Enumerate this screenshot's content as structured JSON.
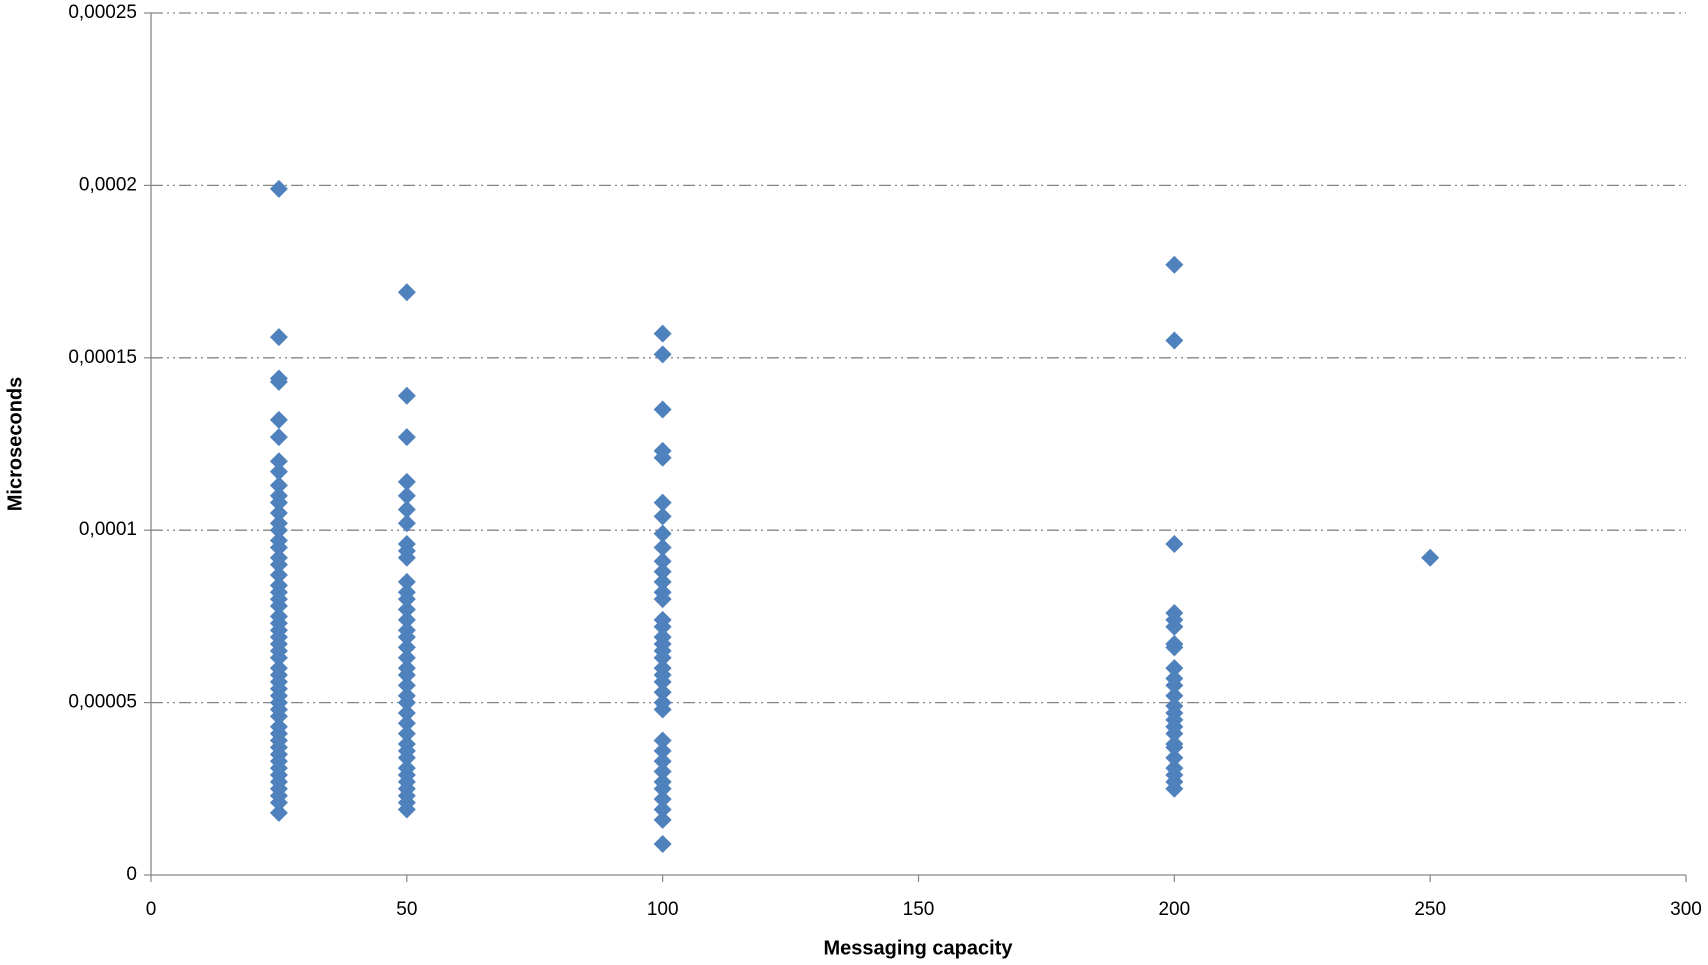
{
  "chart_data": {
    "type": "scatter",
    "x_label": "Messaging capacity",
    "y_label": "Microseconds",
    "color": "#4f81bd",
    "grid": true,
    "xlim": [
      0,
      300
    ],
    "xticks": [
      0,
      50,
      100,
      150,
      200,
      250,
      300
    ],
    "ylim": [
      0,
      0.00025
    ],
    "yticks": [
      0,
      {
        "value": 5e-05,
        "label": "0,00005"
      },
      {
        "value": 0.0001,
        "label": "0,0001"
      },
      {
        "value": 0.00015,
        "label": "0,00015"
      },
      {
        "value": 0.0002,
        "label": "0,0002"
      },
      {
        "value": 0.00025,
        "label": "0,00025"
      }
    ],
    "x": [
      25,
      25,
      25,
      25,
      25,
      25,
      25,
      25,
      25,
      25,
      25,
      25,
      25,
      25,
      25,
      25,
      25,
      25,
      25,
      25,
      25,
      25,
      25,
      25,
      25,
      25,
      25,
      25,
      25,
      25,
      25,
      25,
      25,
      25,
      25,
      25,
      25,
      25,
      25,
      25,
      25,
      25,
      25,
      25,
      25,
      25,
      25,
      25,
      25,
      25,
      25,
      50,
      50,
      50,
      50,
      50,
      50,
      50,
      50,
      50,
      50,
      50,
      50,
      50,
      50,
      50,
      50,
      50,
      50,
      50,
      50,
      50,
      50,
      50,
      50,
      50,
      50,
      50,
      50,
      50,
      50,
      50,
      50,
      50,
      50,
      50,
      50,
      50,
      100,
      100,
      100,
      100,
      100,
      100,
      100,
      100,
      100,
      100,
      100,
      100,
      100,
      100,
      100,
      100,
      100,
      100,
      100,
      100,
      100,
      100,
      100,
      100,
      100,
      100,
      100,
      100,
      100,
      100,
      100,
      100,
      100,
      100,
      100,
      100,
      200,
      200,
      200,
      200,
      200,
      200,
      200,
      200,
      200,
      200,
      200,
      200,
      200,
      200,
      200,
      200,
      200,
      200,
      200,
      200,
      200,
      200,
      200,
      200,
      250
    ],
    "values": [
      0.000199,
      0.000156,
      0.000144,
      0.000143,
      0.000132,
      0.000127,
      0.00012,
      0.000117,
      0.000113,
      0.00011,
      0.000108,
      0.000105,
      0.000102,
      0.0001,
      9.7e-05,
      9.5e-05,
      9.2e-05,
      9e-05,
      8.7e-05,
      8.4e-05,
      8.2e-05,
      8e-05,
      7.8e-05,
      7.5e-05,
      7.3e-05,
      7.1e-05,
      6.9e-05,
      6.7e-05,
      6.5e-05,
      6.3e-05,
      6e-05,
      5.8e-05,
      5.6e-05,
      5.4e-05,
      5.2e-05,
      5e-05,
      4.8e-05,
      4.6e-05,
      4.3e-05,
      4.1e-05,
      3.9e-05,
      3.7e-05,
      3.5e-05,
      3.3e-05,
      3.1e-05,
      2.9e-05,
      2.7e-05,
      2.5e-05,
      2.3e-05,
      2.1e-05,
      1.8e-05,
      0.000169,
      0.000139,
      0.000127,
      0.000114,
      0.00011,
      0.000106,
      0.000102,
      9.6e-05,
      9.4e-05,
      9.2e-05,
      8.5e-05,
      8.2e-05,
      8e-05,
      7.7e-05,
      7.4e-05,
      7.1e-05,
      6.9e-05,
      6.6e-05,
      6.3e-05,
      6e-05,
      5.8e-05,
      5.5e-05,
      5.2e-05,
      5e-05,
      4.7e-05,
      4.4e-05,
      4.1e-05,
      3.8e-05,
      3.6e-05,
      3.4e-05,
      3.1e-05,
      2.9e-05,
      2.7e-05,
      2.5e-05,
      2.3e-05,
      2.1e-05,
      1.9e-05,
      0.000157,
      0.000151,
      0.000135,
      0.000123,
      0.000121,
      0.000108,
      0.000104,
      9.9e-05,
      9.5e-05,
      9.1e-05,
      8.8e-05,
      8.5e-05,
      8.2e-05,
      8e-05,
      7.4e-05,
      7.2e-05,
      6.9e-05,
      6.7e-05,
      6.5e-05,
      6.3e-05,
      6e-05,
      5.8e-05,
      5.6e-05,
      5.3e-05,
      5e-05,
      4.8e-05,
      3.9e-05,
      3.6e-05,
      3.3e-05,
      3e-05,
      2.7e-05,
      2.5e-05,
      2.2e-05,
      1.9e-05,
      1.6e-05,
      9e-06,
      0.000177,
      0.000155,
      9.6e-05,
      7.6e-05,
      7.4e-05,
      7.2e-05,
      6.7e-05,
      6.6e-05,
      6e-05,
      5.7e-05,
      5.5e-05,
      5.2e-05,
      4.9e-05,
      4.7e-05,
      4.5e-05,
      4.3e-05,
      4.1e-05,
      3.8e-05,
      3.7e-05,
      3.4e-05,
      3.1e-05,
      2.9e-05,
      2.7e-05,
      2.5e-05,
      9.2e-05
    ]
  }
}
